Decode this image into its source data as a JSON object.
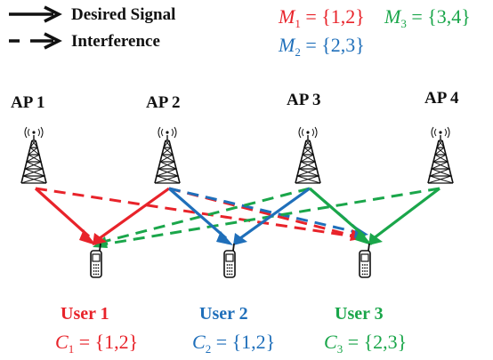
{
  "legend": {
    "desired_label": "Desired Signal",
    "interference_label": "Interference"
  },
  "clusters": [
    {
      "symbol": "M",
      "sub": "1",
      "set": "{1,2}",
      "color": "#e8232a"
    },
    {
      "symbol": "M",
      "sub": "3",
      "set": "{3,4}",
      "color": "#1aa64a"
    },
    {
      "symbol": "M",
      "sub": "2",
      "set": "{2,3}",
      "color": "#1f6fba"
    }
  ],
  "access_points": [
    {
      "label": "AP 1"
    },
    {
      "label": "AP 2"
    },
    {
      "label": "AP 3"
    },
    {
      "label": "AP 4"
    }
  ],
  "users": [
    {
      "label": "User 1",
      "color": "#e8232a",
      "set_symbol": "C",
      "set_sub": "1",
      "set": "{1,2}"
    },
    {
      "label": "User 2",
      "color": "#1f6fba",
      "set_symbol": "C",
      "set_sub": "2",
      "set": "{1,2}"
    },
    {
      "label": "User 3",
      "color": "#1aa64a",
      "set_symbol": "C",
      "set_sub": "3",
      "set": "{2,3}"
    }
  ],
  "colors": {
    "red": "#e8232a",
    "blue": "#1f6fba",
    "green": "#1aa64a",
    "black": "#111111"
  },
  "icons": {
    "tower": "radio-tower-icon",
    "phone": "mobile-phone-icon",
    "arrow": "arrow-icon"
  }
}
